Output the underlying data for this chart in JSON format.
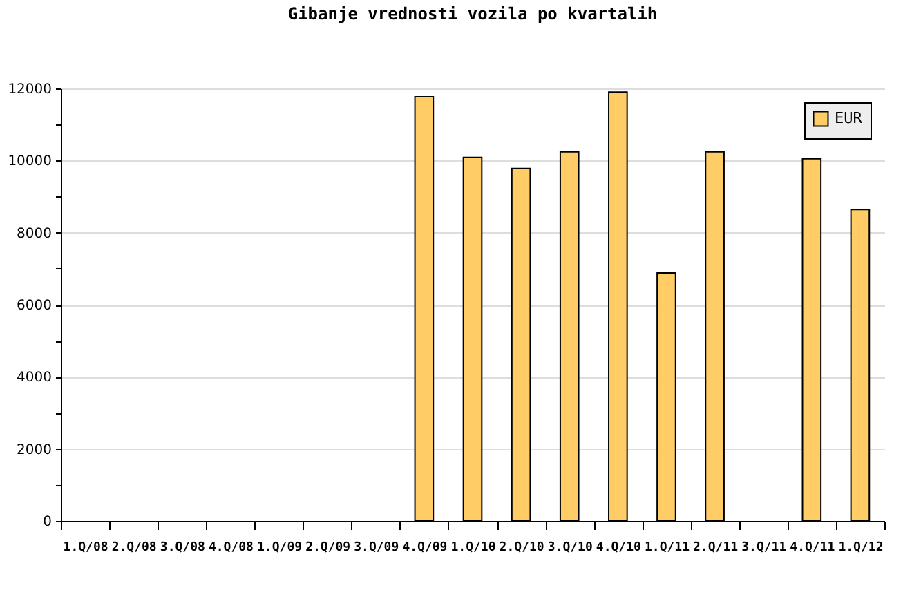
{
  "chart_data": {
    "type": "bar",
    "title": "Gibanje vrednosti vozila po kvartalih",
    "categories": [
      "1.Q/08",
      "2.Q/08",
      "3.Q/08",
      "4.Q/08",
      "1.Q/09",
      "2.Q/09",
      "3.Q/09",
      "4.Q/09",
      "1.Q/10",
      "2.Q/10",
      "3.Q/10",
      "4.Q/10",
      "1.Q/11",
      "2.Q/11",
      "3.Q/11",
      "4.Q/11",
      "1.Q/12"
    ],
    "series": [
      {
        "name": "EUR",
        "color": "#ffcc66",
        "values": [
          null,
          null,
          null,
          null,
          null,
          null,
          null,
          11770,
          10090,
          9780,
          10240,
          11900,
          6880,
          10240,
          null,
          10050,
          8640
        ]
      }
    ],
    "ylim": [
      0,
      12000
    ],
    "yticks": [
      0,
      {
        "value": 1000,
        "label": null
      },
      2000,
      {
        "value": 3000,
        "label": null
      },
      4000,
      {
        "value": 5000,
        "label": null
      },
      6000,
      {
        "value": 7000,
        "label": null
      },
      8000,
      {
        "value": 9000,
        "label": null
      },
      10000,
      {
        "value": 11000,
        "label": null
      },
      12000
    ],
    "grid": "y",
    "legend": "top right"
  }
}
